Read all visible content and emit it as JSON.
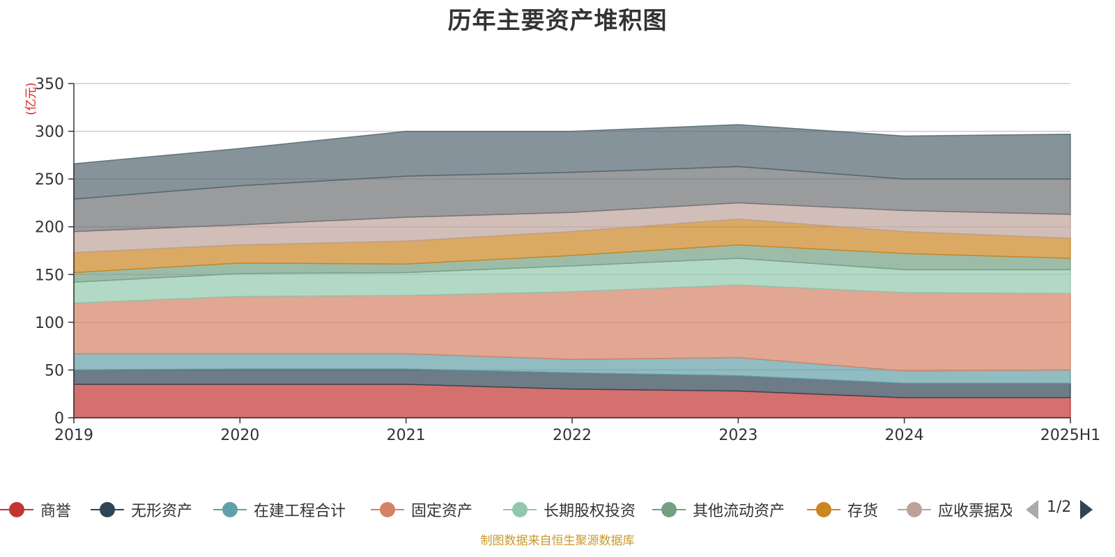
{
  "chart_data": {
    "type": "area",
    "stacked": true,
    "title": "历年主要资产堆积图",
    "ylabel": "(亿元)",
    "categories": [
      "2019",
      "2020",
      "2021",
      "2022",
      "2023",
      "2024",
      "2025H1"
    ],
    "ylim": [
      0,
      350
    ],
    "yticks": [
      "0",
      "50",
      "100",
      "150",
      "200",
      "250",
      "300",
      "350"
    ],
    "grid": true,
    "legend_position": "bottom",
    "series": [
      {
        "name": "商誉",
        "color": "#c23531",
        "values": [
          35,
          35,
          35,
          30,
          28,
          21,
          21
        ]
      },
      {
        "name": "无形资产",
        "color": "#2f4554",
        "values": [
          15,
          16,
          16,
          17,
          16,
          15,
          15
        ]
      },
      {
        "name": "在建工程合计",
        "color": "#61a0a8",
        "values": [
          17,
          16,
          16,
          14,
          19,
          13,
          14
        ]
      },
      {
        "name": "固定资产",
        "color": "#d48265",
        "values": [
          53,
          60,
          61,
          71,
          76,
          82,
          80
        ]
      },
      {
        "name": "长期股权投资",
        "color": "#91c7ae",
        "values": [
          22,
          24,
          24,
          27,
          28,
          24,
          25
        ]
      },
      {
        "name": "其他流动资产",
        "color": "#749f83",
        "values": [
          10,
          11,
          9,
          11,
          14,
          17,
          12
        ]
      },
      {
        "name": "存货",
        "color": "#ca8622",
        "values": [
          21,
          19,
          24,
          25,
          27,
          23,
          21
        ]
      },
      {
        "name": "应收票据及应收账款",
        "color": "#bda29a",
        "values": [
          22,
          21,
          25,
          20,
          17,
          22,
          25
        ]
      },
      {
        "name": "",
        "color": "#6e7074",
        "values": [
          34,
          41,
          43,
          42,
          38,
          33,
          37
        ]
      },
      {
        "name": "",
        "color": "#546570",
        "values": [
          37,
          39,
          47,
          43,
          44,
          45,
          47
        ]
      }
    ]
  },
  "legend": {
    "visible_items": [
      {
        "label": "商誉",
        "color": "#c23531"
      },
      {
        "label": "无形资产",
        "color": "#2f4554"
      },
      {
        "label": "在建工程合计",
        "color": "#61a0a8"
      },
      {
        "label": "固定资产",
        "color": "#d48265"
      },
      {
        "label": "长期股权投资",
        "color": "#91c7ae"
      },
      {
        "label": "其他流动资产",
        "color": "#749f83"
      },
      {
        "label": "存货",
        "color": "#ca8622"
      },
      {
        "label": "应收票据及应收账款",
        "color": "#bda29a"
      }
    ],
    "page": "1/2"
  },
  "source": "制图数据来自恒生聚源数据库"
}
